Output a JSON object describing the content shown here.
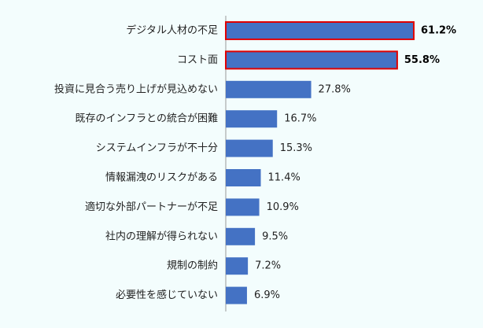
{
  "chart_data": {
    "type": "bar",
    "orientation": "horizontal",
    "categories": [
      "デジタル人材の不足",
      "コスト面",
      "投資に見合う売り上げが見込めない",
      "既存のインフラとの統合が困難",
      "システムインフラが不十分",
      "情報漏洩のリスクがある",
      "適切な外部パートナーが不足",
      "社内の理解が得られない",
      "規制の制約",
      "必要性を感じていない"
    ],
    "values": [
      61.2,
      55.8,
      27.8,
      16.7,
      15.3,
      11.4,
      10.9,
      9.5,
      7.2,
      6.9
    ],
    "value_labels": [
      "61.2%",
      "55.8%",
      "27.8%",
      "16.7%",
      "15.3%",
      "11.4%",
      "10.9%",
      "9.5%",
      "7.2%",
      "6.9%"
    ],
    "highlighted": [
      true,
      true,
      false,
      false,
      false,
      false,
      false,
      false,
      false,
      false
    ],
    "title": "",
    "xlabel": "",
    "ylabel": "",
    "xlim": [
      0,
      70
    ],
    "grid": false,
    "legend": "none",
    "colors": {
      "bar": "#4472c4",
      "highlight_border": "#e00000",
      "axis": "#999999",
      "background": "#f3fdfd"
    }
  }
}
